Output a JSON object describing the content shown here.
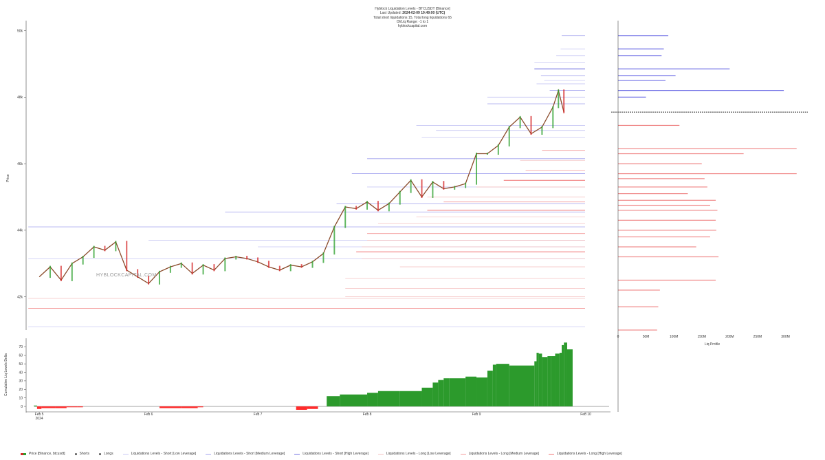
{
  "header": {
    "title": "Hyblock Liquidation Levels - BTCUSDT [Binance]",
    "updated_label": "Last Updated:",
    "updated_value": "2024-02-09 19:49:00 (UTC)",
    "totals": "Total short liquidations 15, Total long liquidations 65",
    "oi_range": "OI/Liq Range: -1 to 1",
    "site": "hyblockcapital.com"
  },
  "watermark": "HYBLOCKCAPITAL.COM",
  "colors": {
    "price_up": "#2ca02c",
    "price_down": "#d62728",
    "short_line": "#8c8cf0",
    "long_line": "#ff8a8a",
    "cum_positive": "#2c9a2c",
    "cum_negative": "#ff2b2b",
    "profile_short": "#7a7ae8",
    "profile_long": "#f08a8a"
  },
  "chart_data": [
    {
      "type": "line",
      "name": "price-panel",
      "ylabel": "Price",
      "ylim": [
        41000,
        50300
      ],
      "yticks": [
        42000,
        44000,
        46000,
        48000,
        50000
      ],
      "ytick_labels": [
        "42k",
        "44k",
        "46k",
        "48k",
        "50k"
      ],
      "xlim": [
        -0.12,
        5.0
      ],
      "xticks": [
        0,
        1,
        2,
        3,
        4,
        5
      ],
      "xtick_labels": [
        "Feb 5",
        "Feb 6",
        "Feb 7",
        "Feb 8",
        "Feb 9",
        "Feb 10"
      ],
      "xtick_sublabel": "2024",
      "current_price": 47550,
      "series": [
        {
          "name": "Price [Binance, btcusdt]",
          "x": [
            0.0,
            0.1,
            0.2,
            0.3,
            0.4,
            0.5,
            0.6,
            0.7,
            0.8,
            0.9,
            1.0,
            1.1,
            1.2,
            1.3,
            1.4,
            1.5,
            1.6,
            1.7,
            1.8,
            1.9,
            2.0,
            2.1,
            2.2,
            2.3,
            2.4,
            2.5,
            2.6,
            2.7,
            2.8,
            2.9,
            3.0,
            3.1,
            3.2,
            3.3,
            3.4,
            3.5,
            3.6,
            3.7,
            3.8,
            3.9,
            4.0,
            4.1,
            4.2,
            4.3,
            4.4,
            4.5,
            4.6,
            4.7,
            4.75,
            4.8
          ],
          "values": [
            42600,
            42900,
            42500,
            43000,
            43200,
            43500,
            43400,
            43650,
            42800,
            42600,
            42400,
            42750,
            42900,
            43000,
            42700,
            42950,
            42800,
            43150,
            43200,
            43150,
            43050,
            42900,
            42800,
            42950,
            42900,
            43050,
            43300,
            44100,
            44700,
            44650,
            44850,
            44600,
            44800,
            45150,
            45500,
            45000,
            45450,
            45250,
            45300,
            45400,
            46300,
            46300,
            46550,
            47100,
            47400,
            46900,
            47100,
            47700,
            48200,
            47550
          ]
        }
      ],
      "short_levels": [
        {
          "price": 49850,
          "x_start": 4.78,
          "leverage": "medium"
        },
        {
          "price": 49450,
          "x_start": 4.77,
          "leverage": "low"
        },
        {
          "price": 49250,
          "x_start": 4.73,
          "leverage": "low"
        },
        {
          "price": 49050,
          "x_start": 4.53,
          "leverage": "low"
        },
        {
          "price": 48850,
          "x_start": 4.53,
          "leverage": "high"
        },
        {
          "price": 48650,
          "x_start": 4.59,
          "leverage": "medium"
        },
        {
          "price": 48500,
          "x_start": 4.62,
          "leverage": "low"
        },
        {
          "price": 48400,
          "x_start": 4.55,
          "leverage": "low"
        },
        {
          "price": 48200,
          "x_start": 4.67,
          "leverage": "medium"
        },
        {
          "price": 48000,
          "x_start": 4.1,
          "leverage": "low"
        },
        {
          "price": 47800,
          "x_start": 4.1,
          "leverage": "medium"
        },
        {
          "price": 47150,
          "x_start": 3.45,
          "leverage": "low"
        },
        {
          "price": 47000,
          "x_start": 3.63,
          "leverage": "low"
        },
        {
          "price": 46800,
          "x_start": 3.5,
          "leverage": "low"
        },
        {
          "price": 46150,
          "x_start": 3.0,
          "leverage": "medium"
        },
        {
          "price": 45700,
          "x_start": 2.86,
          "leverage": "medium"
        },
        {
          "price": 45300,
          "x_start": 3.0,
          "leverage": "low"
        },
        {
          "price": 44800,
          "x_start": 2.72,
          "leverage": "medium"
        },
        {
          "price": 44550,
          "x_start": 1.7,
          "leverage": "medium"
        },
        {
          "price": 44100,
          "x_start": -0.1,
          "leverage": "medium"
        },
        {
          "price": 43700,
          "x_start": 1.0,
          "leverage": "low"
        },
        {
          "price": 43500,
          "x_start": 2.0,
          "leverage": "low"
        },
        {
          "price": 43150,
          "x_start": -0.1,
          "leverage": "low"
        },
        {
          "price": 41100,
          "x_start": -0.1,
          "leverage": "low"
        }
      ],
      "long_levels": [
        {
          "price": 46400,
          "x_start": 4.6,
          "leverage": "medium"
        },
        {
          "price": 46100,
          "x_start": 4.4,
          "leverage": "low"
        },
        {
          "price": 45800,
          "x_start": 4.45,
          "leverage": "medium"
        },
        {
          "price": 45500,
          "x_start": 4.25,
          "leverage": "high"
        },
        {
          "price": 45300,
          "x_start": 4.0,
          "leverage": "low"
        },
        {
          "price": 45000,
          "x_start": 3.55,
          "leverage": "low"
        },
        {
          "price": 44850,
          "x_start": 3.7,
          "leverage": "medium"
        },
        {
          "price": 44600,
          "x_start": 3.55,
          "leverage": "high"
        },
        {
          "price": 44400,
          "x_start": 3.45,
          "leverage": "low"
        },
        {
          "price": 44200,
          "x_start": 3.1,
          "leverage": "low"
        },
        {
          "price": 43900,
          "x_start": 3.0,
          "leverage": "medium"
        },
        {
          "price": 43700,
          "x_start": 3.0,
          "leverage": "low"
        },
        {
          "price": 43500,
          "x_start": 2.95,
          "leverage": "low"
        },
        {
          "price": 43350,
          "x_start": 2.9,
          "leverage": "high"
        },
        {
          "price": 43150,
          "x_start": 2.95,
          "leverage": "low"
        },
        {
          "price": 42900,
          "x_start": 3.3,
          "leverage": "low"
        },
        {
          "price": 42550,
          "x_start": 2.8,
          "leverage": "low"
        },
        {
          "price": 42250,
          "x_start": 2.8,
          "leverage": "low"
        },
        {
          "price": 42000,
          "x_start": 2.8,
          "leverage": "low"
        },
        {
          "price": 41950,
          "x_start": -0.1,
          "leverage": "low"
        },
        {
          "price": 41650,
          "x_start": -0.1,
          "leverage": "medium"
        }
      ]
    },
    {
      "type": "area",
      "name": "cumulative-delta",
      "ylabel": "Cumulative Liq Levels Delta",
      "ylim": [
        -4,
        80
      ],
      "yticks": [
        0,
        10,
        20,
        30,
        40,
        50,
        60,
        70
      ],
      "x": [
        -0.12,
        -0.05,
        -0.02,
        0.02,
        0.15,
        0.25,
        0.35,
        0.4,
        0.5,
        1.0,
        1.1,
        1.3,
        1.45,
        1.5,
        2.0,
        2.2,
        2.35,
        2.45,
        2.55,
        2.63,
        2.75,
        3.0,
        3.1,
        3.3,
        3.5,
        3.6,
        3.65,
        3.7,
        3.75,
        3.9,
        4.0,
        4.1,
        4.15,
        4.18,
        4.3,
        4.5,
        4.53,
        4.55,
        4.57,
        4.6,
        4.65,
        4.68,
        4.72,
        4.76,
        4.78,
        4.8,
        4.83,
        4.88
      ],
      "values": [
        0,
        1,
        -3,
        -2,
        -2,
        -1,
        -1,
        0,
        0,
        0,
        -2,
        -2,
        -1,
        0,
        0,
        0,
        -4,
        -3,
        0,
        12,
        14,
        16,
        18,
        18,
        22,
        28,
        31,
        33,
        33,
        35,
        34,
        42,
        49,
        50,
        48,
        48,
        53,
        63,
        62,
        58,
        59,
        59,
        62,
        63,
        72,
        75,
        67,
        67
      ]
    },
    {
      "type": "bar",
      "name": "liq-profile",
      "xlabel": "Liq Profile",
      "xlim": [
        0,
        340000000
      ],
      "xticks": [
        0,
        50000000,
        100000000,
        150000000,
        200000000,
        250000000,
        300000000
      ],
      "xtick_labels": [
        "0",
        "50M",
        "100M",
        "150M",
        "200M",
        "250M",
        "300M"
      ],
      "short_profile": [
        {
          "price": 49850,
          "value": 90000000
        },
        {
          "price": 49450,
          "value": 82000000
        },
        {
          "price": 49250,
          "value": 78000000
        },
        {
          "price": 48850,
          "value": 200000000
        },
        {
          "price": 48650,
          "value": 103000000
        },
        {
          "price": 48500,
          "value": 85000000
        },
        {
          "price": 48200,
          "value": 297000000
        },
        {
          "price": 48000,
          "value": 50000000
        }
      ],
      "long_profile": [
        {
          "price": 47150,
          "value": 110000000
        },
        {
          "price": 46450,
          "value": 320000000
        },
        {
          "price": 46300,
          "value": 225000000
        },
        {
          "price": 46000,
          "value": 150000000
        },
        {
          "price": 45700,
          "value": 320000000
        },
        {
          "price": 45550,
          "value": 155000000
        },
        {
          "price": 45300,
          "value": 160000000
        },
        {
          "price": 45100,
          "value": 125000000
        },
        {
          "price": 44900,
          "value": 175000000
        },
        {
          "price": 44750,
          "value": 165000000
        },
        {
          "price": 44600,
          "value": 178000000
        },
        {
          "price": 44300,
          "value": 175000000
        },
        {
          "price": 44000,
          "value": 176000000
        },
        {
          "price": 43800,
          "value": 165000000
        },
        {
          "price": 43500,
          "value": 140000000
        },
        {
          "price": 43200,
          "value": 180000000
        },
        {
          "price": 42500,
          "value": 175000000
        },
        {
          "price": 42200,
          "value": 75000000
        },
        {
          "price": 41700,
          "value": 72000000
        },
        {
          "price": 41000,
          "value": 70000000
        }
      ]
    }
  ],
  "legend": [
    {
      "label": "Price [Binance, btcusdt]",
      "kind": "candle"
    },
    {
      "label": "Shorts",
      "kind": "dot",
      "color": "#555555"
    },
    {
      "label": "Longs",
      "kind": "dot",
      "color": "#555555"
    },
    {
      "label": "Liquidations Levels - Short [Low Leverage]",
      "kind": "line",
      "color": "#c8c8f4"
    },
    {
      "label": "Liquidations Levels - Short [Medium Leverage]",
      "kind": "line",
      "color": "#a0a0ee"
    },
    {
      "label": "Liquidations Levels - Short [High Leverage]",
      "kind": "line",
      "color": "#7070e0"
    },
    {
      "label": "Liquidations Levels - Long [Low Leverage]",
      "kind": "line",
      "color": "#f4c0c0"
    },
    {
      "label": "Liquidations Levels - Long [Medium Leverage]",
      "kind": "line",
      "color": "#f49a9a"
    },
    {
      "label": "Liquidations Levels - Long [High Leverage]",
      "kind": "line",
      "color": "#f07070"
    }
  ]
}
